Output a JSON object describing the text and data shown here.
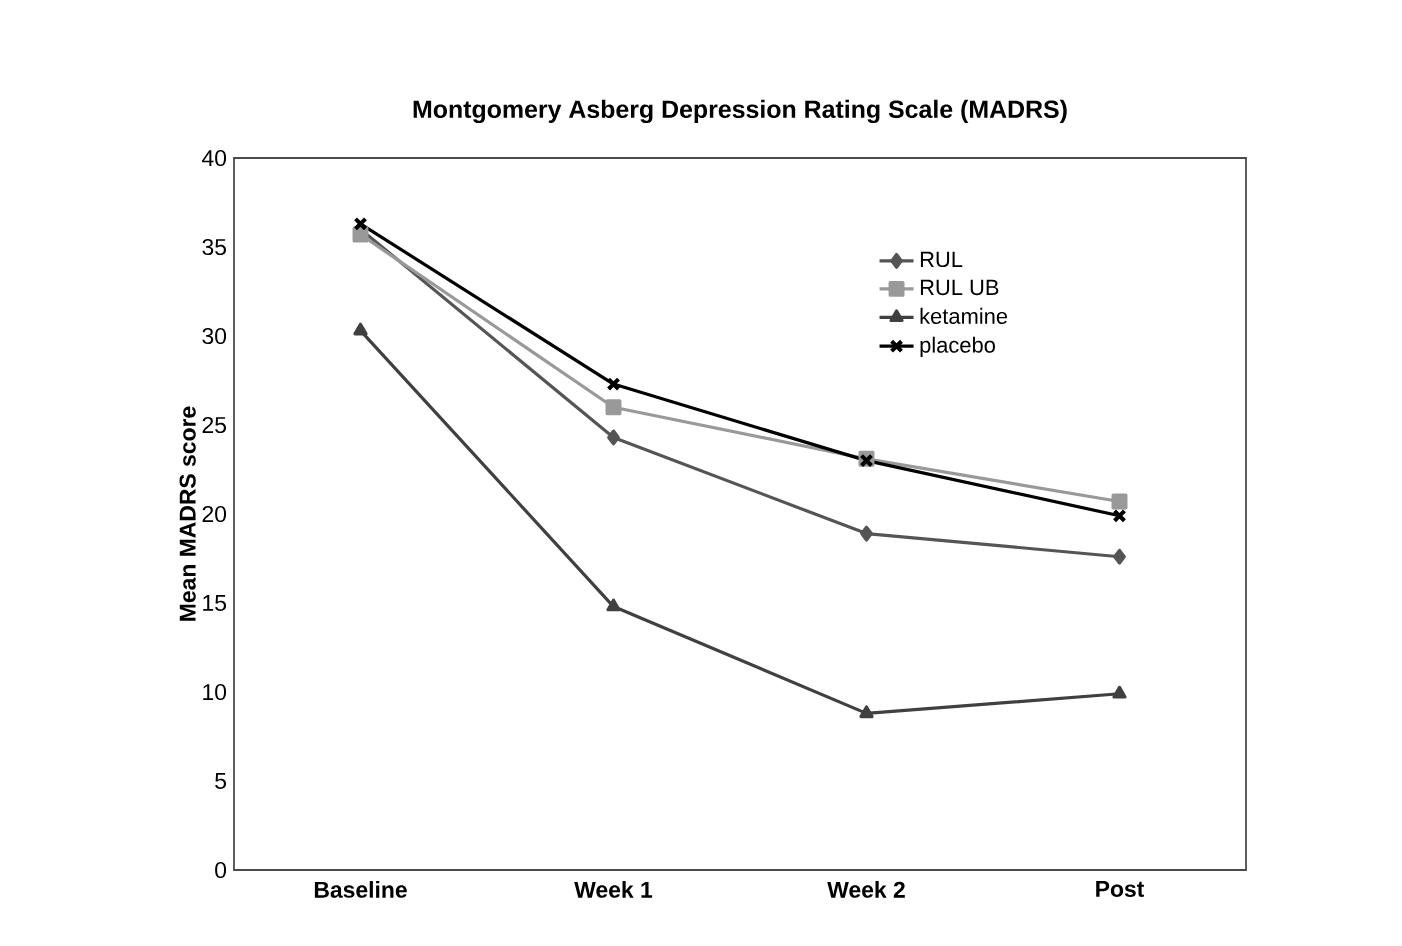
{
  "chart_data": {
    "type": "line",
    "title": "Montgomery Asberg Depression Rating Scale (MADRS)",
    "ylabel": "Mean MADRS score",
    "categories": [
      "Baseline",
      "Week 1",
      "Week 2",
      "Post"
    ],
    "series": [
      {
        "name": "RUL",
        "color": "#555555",
        "marker": "diamond",
        "values": [
          36.0,
          24.3,
          18.9,
          17.6
        ]
      },
      {
        "name": "RUL UB",
        "color": "#999999",
        "marker": "square",
        "values": [
          35.7,
          26.0,
          23.1,
          20.7
        ]
      },
      {
        "name": "ketamine",
        "color": "#404040",
        "marker": "triangle",
        "values": [
          30.3,
          14.8,
          8.8,
          9.9
        ]
      },
      {
        "name": "placebo",
        "color": "#000000",
        "marker": "cross",
        "values": [
          36.3,
          27.3,
          23.0,
          19.9
        ]
      }
    ],
    "ylim": [
      0,
      40
    ],
    "yticks": [
      0,
      5,
      10,
      15,
      20,
      25,
      30,
      35,
      40
    ],
    "grid": false,
    "legend": "top right",
    "line_style": "solid"
  }
}
